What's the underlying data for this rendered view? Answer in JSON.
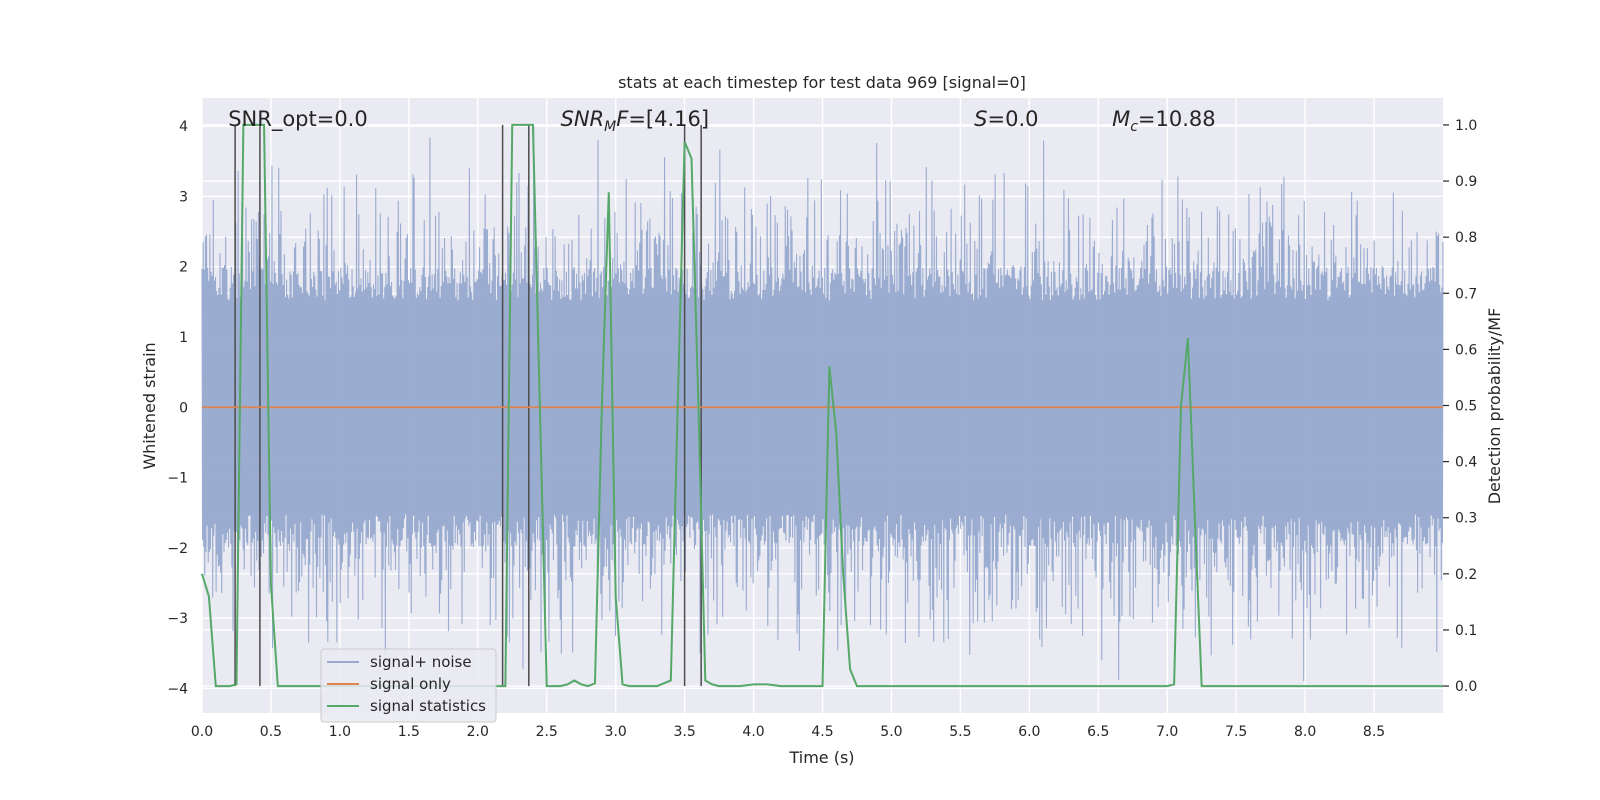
{
  "chart_data": {
    "type": "line",
    "title": "stats at each timestep for test data 969 [signal=0]",
    "xlabel": "Time (s)",
    "ylabel": "Whitened strain",
    "y2label": "Detection probability/MF",
    "xlim": [
      0,
      9.0
    ],
    "ylim": [
      -4.35,
      4.4
    ],
    "y2lim": [
      -0.048,
      1.048
    ],
    "x_ticks": [
      0.0,
      0.5,
      1.0,
      1.5,
      2.0,
      2.5,
      3.0,
      3.5,
      4.0,
      4.5,
      5.0,
      5.5,
      6.0,
      6.5,
      7.0,
      7.5,
      8.0,
      8.5
    ],
    "x_tick_labels": [
      "0.0",
      "0.5",
      "1.0",
      "1.5",
      "2.0",
      "2.5",
      "3.0",
      "3.5",
      "4.0",
      "4.5",
      "5.0",
      "5.5",
      "6.0",
      "6.5",
      "7.0",
      "7.5",
      "8.0",
      "8.5"
    ],
    "y_ticks": [
      -4,
      -3,
      -2,
      -1,
      0,
      1,
      2,
      3,
      4
    ],
    "y_tick_labels": [
      "−4",
      "−3",
      "−2",
      "−1",
      "0",
      "1",
      "2",
      "3",
      "4"
    ],
    "y2_ticks": [
      0.0,
      0.1,
      0.2,
      0.3,
      0.4,
      0.5,
      0.6,
      0.7,
      0.8,
      0.9,
      1.0
    ],
    "y2_tick_labels": [
      "0.0",
      "0.1",
      "0.2",
      "0.3",
      "0.4",
      "0.5",
      "0.6",
      "0.7",
      "0.8",
      "0.9",
      "1.0"
    ],
    "grid": true,
    "legend_position": "lower-left",
    "annotations": [
      {
        "text": "SNR_opt=0.0",
        "x": 0.19,
        "y": 4.1,
        "style": "plain"
      },
      {
        "base": "SNR",
        "sub": "M",
        "rest": "F=[4.16]",
        "x": 2.6,
        "y": 4.1,
        "style": "math"
      },
      {
        "base": "S",
        "sub": "",
        "rest": "=0.0",
        "x": 5.6,
        "y": 4.1,
        "style": "math"
      },
      {
        "base": "M",
        "sub": "c",
        "rest": "=10.88",
        "x": 6.6,
        "y": 4.1,
        "style": "math"
      }
    ],
    "series": [
      {
        "name": "signal+ noise",
        "color": "#97a9cf",
        "kind": "noise",
        "x_range": [
          0,
          9.0
        ],
        "typical_amplitude": 1.6,
        "peak_amplitude": 4.0
      },
      {
        "name": "signal only",
        "color": "#dd8452",
        "kind": "flat",
        "x": [
          0,
          9.0
        ],
        "y": [
          0,
          0
        ]
      },
      {
        "name": "signal statistics",
        "color": "#55a868",
        "axis": "right",
        "x": [
          0.0,
          0.05,
          0.1,
          0.15,
          0.2,
          0.25,
          0.3,
          0.35,
          0.4,
          0.45,
          0.5,
          0.55,
          0.6,
          2.0,
          2.1,
          2.15,
          2.2,
          2.25,
          2.3,
          2.35,
          2.4,
          2.45,
          2.5,
          2.55,
          2.6,
          2.65,
          2.7,
          2.75,
          2.8,
          2.85,
          2.9,
          2.95,
          3.0,
          3.05,
          3.1,
          3.15,
          3.2,
          3.3,
          3.4,
          3.45,
          3.5,
          3.55,
          3.6,
          3.65,
          3.7,
          3.75,
          3.8,
          3.85,
          3.9,
          4.0,
          4.1,
          4.2,
          4.3,
          4.4,
          4.5,
          4.55,
          4.6,
          4.65,
          4.7,
          4.75,
          4.8,
          4.85,
          4.9,
          5.0,
          6.0,
          7.0,
          7.05,
          7.1,
          7.15,
          7.2,
          7.25,
          7.3,
          8.0,
          9.0
        ],
        "y": [
          0.2,
          0.16,
          0.0,
          0.0,
          0.0,
          0.003,
          1.0,
          1.0,
          1.0,
          1.0,
          0.18,
          0.0,
          0.0,
          0.0,
          0.0,
          0.0,
          0.0,
          1.0,
          1.0,
          1.0,
          1.0,
          0.5,
          0.0,
          0.0,
          0.0,
          0.003,
          0.01,
          0.003,
          0.0,
          0.005,
          0.5,
          0.88,
          0.16,
          0.003,
          0.0,
          0.0,
          0.0,
          0.0,
          0.01,
          0.5,
          0.97,
          0.94,
          0.5,
          0.01,
          0.003,
          0.0,
          0.0,
          0.0,
          0.0,
          0.003,
          0.003,
          0.0,
          0.0,
          0.0,
          0.0,
          0.57,
          0.45,
          0.2,
          0.03,
          0.0,
          0.0,
          0.0,
          0.0,
          0.0,
          0.0,
          0.0,
          0.003,
          0.5,
          0.62,
          0.3,
          0.0,
          0.0,
          0.0,
          0.0
        ]
      }
    ],
    "vlines": [
      0.24,
      0.42,
      2.18,
      2.37,
      3.5,
      3.62
    ],
    "vline_color": "#4c4c4c"
  }
}
